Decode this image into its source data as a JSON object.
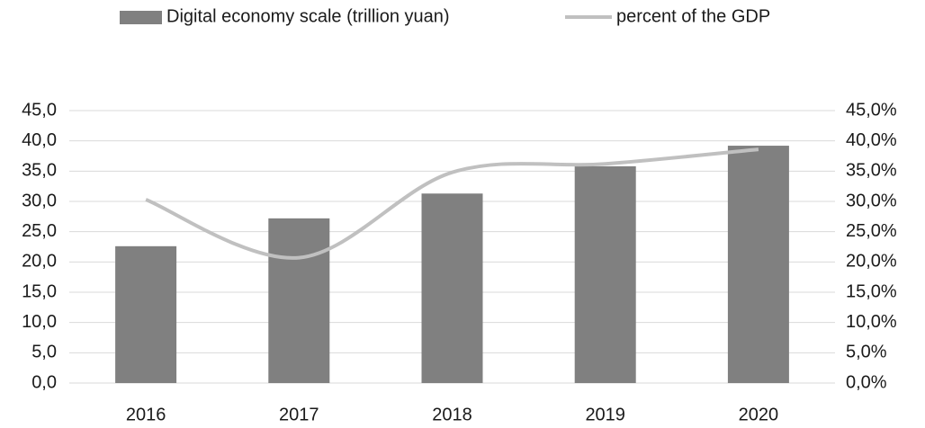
{
  "chart_data": {
    "type": "bar",
    "categories": [
      "2016",
      "2017",
      "2018",
      "2019",
      "2020"
    ],
    "series": [
      {
        "name": "Digital economy scale (trillion yuan)",
        "color": "#808080",
        "values": [
          22.6,
          27.2,
          31.3,
          35.8,
          39.2
        ]
      },
      {
        "name": "percent of the GDP",
        "color": "#c0c0c0",
        "type": "line",
        "axis": "y2",
        "smooth": true,
        "values": [
          30.3,
          20.7,
          34.8,
          36.2,
          38.6
        ]
      }
    ],
    "ylim": [
      0,
      45
    ],
    "yticks": [
      {
        "value": 0,
        "label": "0,0"
      },
      {
        "value": 5,
        "label": "5,0"
      },
      {
        "value": 10,
        "label": "10,0"
      },
      {
        "value": 15,
        "label": "15,0"
      },
      {
        "value": 20,
        "label": "20,0"
      },
      {
        "value": 25,
        "label": "25,0"
      },
      {
        "value": 30,
        "label": "30,0"
      },
      {
        "value": 35,
        "label": "35,0"
      },
      {
        "value": 40,
        "label": "40,0"
      },
      {
        "value": 45,
        "label": "45,0"
      }
    ],
    "y2lim": [
      0,
      45
    ],
    "y2ticks": [
      {
        "value": 0,
        "label": "0,0%"
      },
      {
        "value": 5,
        "label": "5,0%"
      },
      {
        "value": 10,
        "label": "10,0%"
      },
      {
        "value": 15,
        "label": "15,0%"
      },
      {
        "value": 20,
        "label": "20,0%"
      },
      {
        "value": 25,
        "label": "25,0%"
      },
      {
        "value": 30,
        "label": "30,0%"
      },
      {
        "value": 35,
        "label": "35,0%"
      },
      {
        "value": 40,
        "label": "40,0%"
      },
      {
        "value": 45,
        "label": "45,0%"
      }
    ],
    "grid": true,
    "legend": "top"
  }
}
